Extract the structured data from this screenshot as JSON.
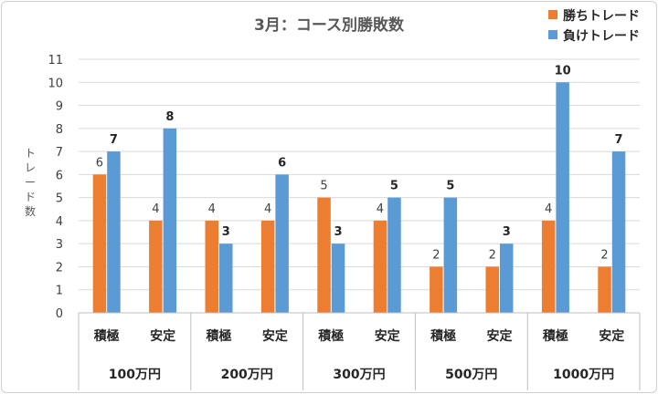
{
  "chart_data": {
    "type": "bar",
    "title": "3月：コース別勝敗数",
    "ylabel": "トレード数",
    "ylim": [
      0,
      11
    ],
    "yticks": [
      0,
      1,
      2,
      3,
      4,
      5,
      6,
      7,
      8,
      9,
      10,
      11
    ],
    "grid": true,
    "legend": "top-right",
    "groups": [
      "100万円",
      "200万円",
      "300万円",
      "500万円",
      "1000万円"
    ],
    "subcategories": [
      "積極",
      "安定"
    ],
    "categories": [
      "100万円 積極",
      "100万円 安定",
      "200万円 積極",
      "200万円 安定",
      "300万円 積極",
      "300万円 安定",
      "500万円 積極",
      "500万円 安定",
      "1000万円 積極",
      "1000万円 安定"
    ],
    "series": [
      {
        "name": "勝ちトレード",
        "color": "#ED7D31",
        "values": [
          6,
          4,
          4,
          4,
          5,
          4,
          2,
          2,
          4,
          2
        ]
      },
      {
        "name": "負けトレード",
        "color": "#5B9BD5",
        "values": [
          7,
          8,
          3,
          6,
          3,
          5,
          5,
          3,
          10,
          7
        ]
      }
    ]
  }
}
